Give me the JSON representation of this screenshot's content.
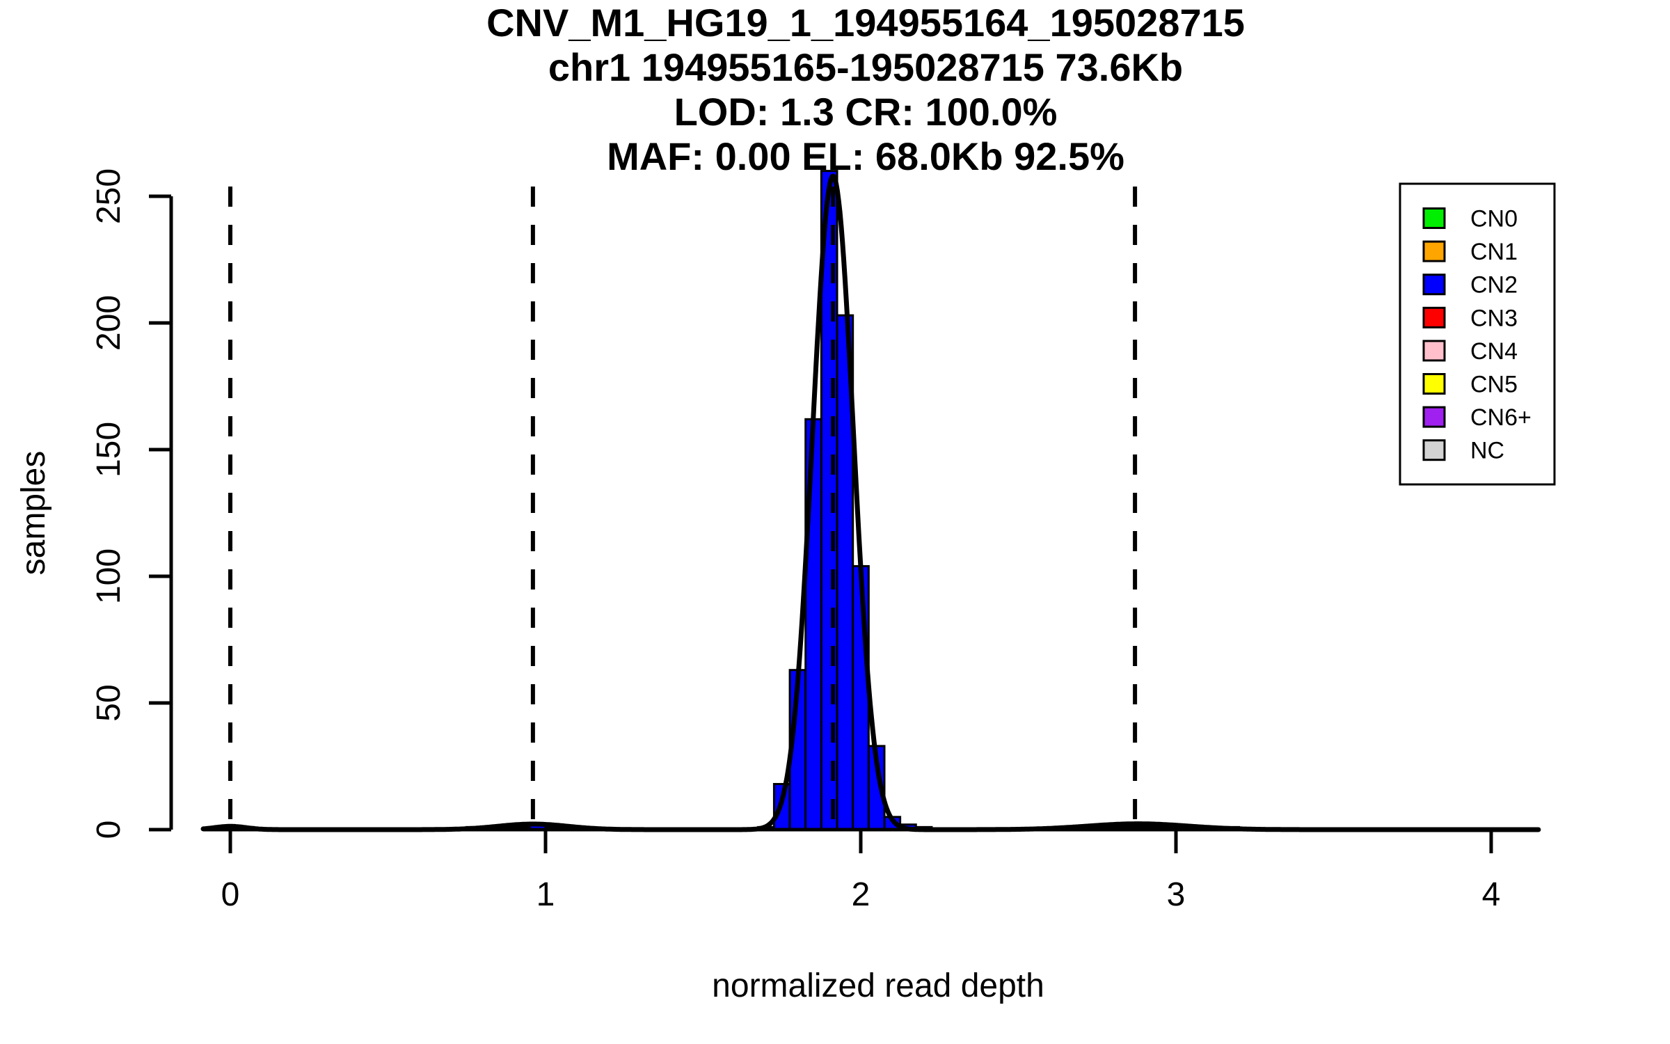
{
  "chart_data": {
    "type": "bar",
    "subtype": "histogram_with_gaussian_fit",
    "title_lines": [
      "CNV_M1_HG19_1_194955164_195028715",
      "chr1 194955165-195028715 73.6Kb",
      "LOD: 1.3 CR: 100.0%",
      "MAF: 0.00 EL: 68.0Kb 92.5%"
    ],
    "xlabel": "normalized read depth",
    "ylabel": "samples",
    "x_ticks": [
      0,
      1,
      2,
      3,
      4
    ],
    "y_ticks": [
      0,
      50,
      100,
      150,
      200,
      250
    ],
    "xlim": [
      -0.09,
      4.18
    ],
    "ylim": [
      0,
      253
    ],
    "grid": false,
    "legend_position": "top-right",
    "bin_width": 0.05,
    "bar_fill_color": "#0000FF",
    "bar_stroke_color": "#000000",
    "main_histogram": {
      "cn_class": "CN2",
      "bins": [
        {
          "center": 1.7,
          "count": 1
        },
        {
          "center": 1.75,
          "count": 18
        },
        {
          "center": 1.8,
          "count": 63
        },
        {
          "center": 1.85,
          "count": 162
        },
        {
          "center": 1.9,
          "count": 260
        },
        {
          "center": 1.95,
          "count": 203
        },
        {
          "center": 2.0,
          "count": 104
        },
        {
          "center": 2.05,
          "count": 33
        },
        {
          "center": 2.1,
          "count": 5
        },
        {
          "center": 2.15,
          "count": 2
        },
        {
          "center": 2.2,
          "count": 1
        }
      ]
    },
    "minor_bins": [
      {
        "center": 0.005,
        "count": 1,
        "width": 0.14
      },
      {
        "center": 0.775,
        "count": 1
      },
      {
        "center": 0.825,
        "count": 1
      },
      {
        "center": 0.875,
        "count": 1
      },
      {
        "center": 0.925,
        "count": 1
      },
      {
        "center": 0.975,
        "count": 2
      },
      {
        "center": 1.025,
        "count": 1
      },
      {
        "center": 1.075,
        "count": 1
      },
      {
        "center": 1.125,
        "count": 1
      },
      {
        "center": 2.725,
        "count": 1
      },
      {
        "center": 2.775,
        "count": 1
      },
      {
        "center": 2.825,
        "count": 1
      },
      {
        "center": 2.875,
        "count": 1
      },
      {
        "center": 2.925,
        "count": 1
      },
      {
        "center": 2.975,
        "count": 1
      },
      {
        "center": 3.025,
        "count": 1
      },
      {
        "center": 3.075,
        "count": 1
      },
      {
        "center": 3.125,
        "count": 1
      },
      {
        "center": 3.175,
        "count": 1
      }
    ],
    "fit_curve_components": [
      {
        "mean": 1.912,
        "sd": 0.065,
        "amplitude": 258
      },
      {
        "mean": 0.0,
        "sd": 0.05,
        "amplitude": 1.3
      },
      {
        "mean": 0.96,
        "sd": 0.11,
        "amplitude": 2.2
      },
      {
        "mean": 2.88,
        "sd": 0.16,
        "amplitude": 2.3
      }
    ],
    "dashed_cluster_means": [
      0.0,
      0.96,
      1.912,
      2.87
    ],
    "line_color": "#000000"
  },
  "legend": {
    "items": [
      {
        "label": "CN0",
        "color": "#00EE00"
      },
      {
        "label": "CN1",
        "color": "#FFA500"
      },
      {
        "label": "CN2",
        "color": "#0000FF"
      },
      {
        "label": "CN3",
        "color": "#FF0000"
      },
      {
        "label": "CN4",
        "color": "#FFC0CB"
      },
      {
        "label": "CN5",
        "color": "#FFFF00"
      },
      {
        "label": "CN6+",
        "color": "#A020F0"
      },
      {
        "label": "NC",
        "color": "#D3D3D3"
      }
    ]
  }
}
